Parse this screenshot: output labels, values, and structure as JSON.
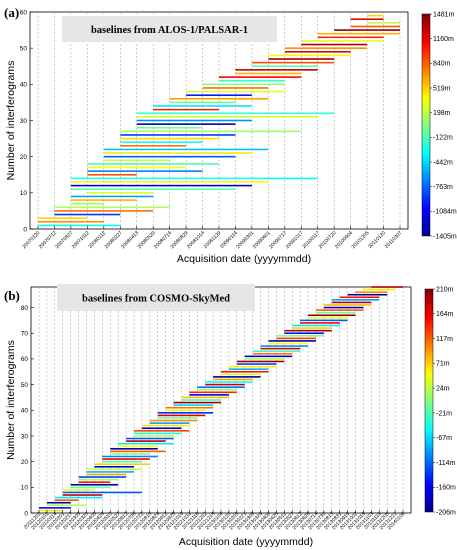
{
  "chart_data": [
    {
      "type": "bar",
      "panel_label": "(a)",
      "title": "baselines from ALOS-1/PALSAR-1",
      "xlabel": "Acquisition date (yyyymmdd)",
      "ylabel": "Number of interferograms",
      "ylim": [
        0,
        60
      ],
      "yticks": [
        0,
        10,
        20,
        30,
        40,
        50,
        60
      ],
      "grid": "vertical dashed lines at each acquisition",
      "colorbar": {
        "labels": [
          "1481m",
          "1160m",
          "840m",
          "519m",
          "198m",
          "-122m",
          "-442m",
          "-763m",
          "-1084m",
          "-1405m"
        ],
        "min": -1405,
        "max": 1481,
        "colors": [
          "#00008f",
          "#0000ff",
          "#00ffff",
          "#ffff00",
          "#ff0000",
          "#800000"
        ]
      },
      "dates": [
        "20070120",
        "20070712",
        "20070827",
        "20071012",
        "20080112",
        "20080227",
        "20080413",
        "20080529",
        "20080714",
        "20080829",
        "20081014",
        "20081129",
        "20090114",
        "20090301",
        "20090601",
        "20090717",
        "20091017",
        "20100117",
        "20100720",
        "20100904",
        "20101205",
        "20110120",
        "20110307"
      ],
      "date_labels": [
        "20070120",
        "20070712",
        "20070827",
        "20071012",
        "20080112",
        "20080227",
        "20080413",
        "20080529",
        "20080714",
        "20080829",
        "20081014",
        "20081129",
        "20090114",
        "20090301",
        "20090601",
        "20090717",
        "20091017",
        "20100117",
        "20100720",
        "20100904",
        "20101205",
        "20110120",
        "20110307"
      ],
      "pairs": [
        [
          0,
          5,
          -300
        ],
        [
          0,
          4,
          700
        ],
        [
          0,
          3,
          500
        ],
        [
          1,
          5,
          -900
        ],
        [
          1,
          7,
          800
        ],
        [
          1,
          8,
          150
        ],
        [
          2,
          4,
          100
        ],
        [
          2,
          6,
          600
        ],
        [
          2,
          7,
          -600
        ],
        [
          3,
          7,
          300
        ],
        [
          2,
          12,
          -100
        ],
        [
          2,
          13,
          -1200
        ],
        [
          2,
          14,
          400
        ],
        [
          2,
          17,
          -300
        ],
        [
          3,
          6,
          900
        ],
        [
          3,
          10,
          -700
        ],
        [
          3,
          9,
          350
        ],
        [
          3,
          11,
          -100
        ],
        [
          4,
          8,
          200
        ],
        [
          4,
          12,
          -800
        ],
        [
          4,
          13,
          450
        ],
        [
          4,
          14,
          -500
        ],
        [
          5,
          9,
          800
        ],
        [
          5,
          10,
          -300
        ],
        [
          5,
          11,
          500
        ],
        [
          5,
          12,
          -900
        ],
        [
          5,
          16,
          100
        ],
        [
          6,
          10,
          0
        ],
        [
          6,
          12,
          -1300
        ],
        [
          6,
          13,
          -650
        ],
        [
          6,
          17,
          250
        ],
        [
          6,
          18,
          -200
        ],
        [
          7,
          11,
          1000
        ],
        [
          7,
          13,
          -400
        ],
        [
          8,
          12,
          -50
        ],
        [
          8,
          14,
          650
        ],
        [
          9,
          13,
          -1000
        ],
        [
          9,
          15,
          300
        ],
        [
          10,
          14,
          800
        ],
        [
          10,
          15,
          50
        ],
        [
          11,
          15,
          -200
        ],
        [
          11,
          16,
          1100
        ],
        [
          12,
          16,
          600
        ],
        [
          12,
          17,
          1300
        ],
        [
          13,
          17,
          -100
        ],
        [
          13,
          18,
          900
        ],
        [
          14,
          18,
          1400
        ],
        [
          14,
          19,
          400
        ],
        [
          15,
          19,
          1200
        ],
        [
          15,
          20,
          700
        ],
        [
          16,
          20,
          1350
        ],
        [
          16,
          21,
          300
        ],
        [
          17,
          21,
          1000
        ],
        [
          17,
          22,
          600
        ],
        [
          18,
          22,
          1450
        ],
        [
          19,
          22,
          850
        ],
        [
          20,
          22,
          200
        ],
        [
          19,
          21,
          1200
        ],
        [
          20,
          21,
          500
        ]
      ]
    },
    {
      "type": "bar",
      "panel_label": "(b)",
      "title": "baselines from COSMO-SkyMed",
      "xlabel": "Acquisition date (yyyymmdd)",
      "ylabel": "Number of interferograms",
      "ylim": [
        0,
        88
      ],
      "yticks": [
        0,
        10,
        20,
        30,
        40,
        50,
        60,
        70,
        80
      ],
      "grid": "vertical dashed lines at each acquisition",
      "colorbar": {
        "labels": [
          "210m",
          "164m",
          "117m",
          "71m",
          "24m",
          "-21m",
          "-67m",
          "-114m",
          "-160m",
          "-206m"
        ],
        "min": -206,
        "max": 210,
        "colors": [
          "#00008f",
          "#0000ff",
          "#00ffff",
          "#ffff00",
          "#ff0000",
          "#800000"
        ]
      },
      "dates": [
        "20111202",
        "20120102",
        "20120114",
        "20120201",
        "20120217",
        "20120305",
        "20120320",
        "20120405",
        "20120424",
        "20120510",
        "20120527",
        "20120612",
        "20120706",
        "20120722",
        "20120810",
        "20120824",
        "20120912",
        "20120928",
        "20121014",
        "20121031",
        "20121116",
        "20121202",
        "20121218",
        "20130104",
        "20130120",
        "20130205",
        "20130221",
        "20130308",
        "20130324",
        "20130409",
        "20130425",
        "20130511",
        "20130527",
        "20130612",
        "20130628",
        "20130714",
        "20130730",
        "20130815",
        "20130831",
        "20130916",
        "20131002",
        "20131018",
        "20131103",
        "20131119",
        "20131205",
        "20131221",
        "20140106"
      ],
      "date_labels": [
        "20111202",
        "20120102",
        "20120114",
        "20120201",
        "20120217",
        "20120305",
        "20120320",
        "20120405",
        "20120424",
        "20120510",
        "20120527",
        "20120612",
        "20120706",
        "20120722",
        "20120810",
        "20120824",
        "20120912",
        "20120928",
        "20121014",
        "20121031",
        "20121116",
        "20121202",
        "20121218",
        "20130104",
        "20130120",
        "20130205",
        "20130221",
        "20130308",
        "20130324",
        "20130409",
        "20130425",
        "20130511",
        "20130527",
        "20130612",
        "20130628",
        "20130714",
        "20130730",
        "20130815",
        "20130831",
        "20130916",
        "20131002",
        "20131018",
        "20131103",
        "20131119",
        "20131205",
        "20131221",
        "20140106"
      ],
      "pairs": [
        [
          0,
          3,
          60
        ],
        [
          0,
          4,
          -150
        ],
        [
          1,
          6,
          20
        ],
        [
          1,
          4,
          -190
        ],
        [
          2,
          5,
          120
        ],
        [
          2,
          8,
          -60
        ],
        [
          3,
          8,
          180
        ],
        [
          3,
          13,
          -120
        ],
        [
          3,
          7,
          40
        ],
        [
          4,
          9,
          -10
        ],
        [
          4,
          10,
          -200
        ],
        [
          5,
          9,
          150
        ],
        [
          5,
          10,
          10
        ],
        [
          5,
          11,
          -130
        ],
        [
          6,
          11,
          90
        ],
        [
          6,
          12,
          -80
        ],
        [
          6,
          13,
          30
        ],
        [
          7,
          12,
          -170
        ],
        [
          7,
          14,
          70
        ],
        [
          8,
          13,
          -30
        ],
        [
          8,
          14,
          160
        ],
        [
          8,
          15,
          -100
        ],
        [
          9,
          14,
          0
        ],
        [
          9,
          16,
          120
        ],
        [
          9,
          15,
          -190
        ],
        [
          10,
          15,
          50
        ],
        [
          10,
          17,
          -60
        ],
        [
          11,
          16,
          190
        ],
        [
          11,
          17,
          -120
        ],
        [
          12,
          17,
          20
        ],
        [
          12,
          18,
          -40
        ],
        [
          12,
          19,
          130
        ],
        [
          13,
          18,
          -180
        ],
        [
          13,
          19,
          60
        ],
        [
          14,
          19,
          -90
        ],
        [
          14,
          20,
          100
        ],
        [
          15,
          20,
          -10
        ],
        [
          15,
          21,
          170
        ],
        [
          15,
          22,
          -140
        ],
        [
          16,
          21,
          40
        ],
        [
          16,
          22,
          110
        ],
        [
          17,
          22,
          -70
        ],
        [
          17,
          23,
          200
        ],
        [
          18,
          23,
          -20
        ],
        [
          18,
          24,
          80
        ],
        [
          19,
          24,
          -160
        ],
        [
          19,
          25,
          140
        ],
        [
          20,
          25,
          10
        ],
        [
          20,
          26,
          -110
        ],
        [
          21,
          26,
          180
        ],
        [
          21,
          27,
          -50
        ],
        [
          22,
          27,
          90
        ],
        [
          22,
          28,
          -200
        ],
        [
          23,
          28,
          30
        ],
        [
          23,
          29,
          150
        ],
        [
          24,
          29,
          -80
        ],
        [
          24,
          30,
          60
        ],
        [
          25,
          30,
          -130
        ],
        [
          25,
          31,
          200
        ],
        [
          26,
          31,
          20
        ],
        [
          26,
          32,
          -170
        ],
        [
          27,
          32,
          110
        ],
        [
          27,
          33,
          -30
        ],
        [
          28,
          33,
          170
        ],
        [
          28,
          34,
          -100
        ],
        [
          29,
          34,
          50
        ],
        [
          29,
          35,
          -190
        ],
        [
          30,
          35,
          130
        ],
        [
          30,
          36,
          0
        ],
        [
          31,
          36,
          -150
        ],
        [
          31,
          37,
          190
        ],
        [
          32,
          37,
          70
        ],
        [
          32,
          38,
          -60
        ],
        [
          33,
          38,
          160
        ],
        [
          33,
          39,
          -120
        ],
        [
          34,
          39,
          40
        ],
        [
          34,
          40,
          200
        ],
        [
          35,
          40,
          -10
        ],
        [
          35,
          41,
          120
        ],
        [
          36,
          41,
          -180
        ],
        [
          36,
          42,
          80
        ],
        [
          37,
          42,
          180
        ],
        [
          37,
          43,
          -90
        ],
        [
          38,
          43,
          150
        ],
        [
          39,
          44,
          -200
        ],
        [
          40,
          44,
          100
        ],
        [
          41,
          45,
          60
        ],
        [
          42,
          46,
          190
        ]
      ]
    }
  ]
}
